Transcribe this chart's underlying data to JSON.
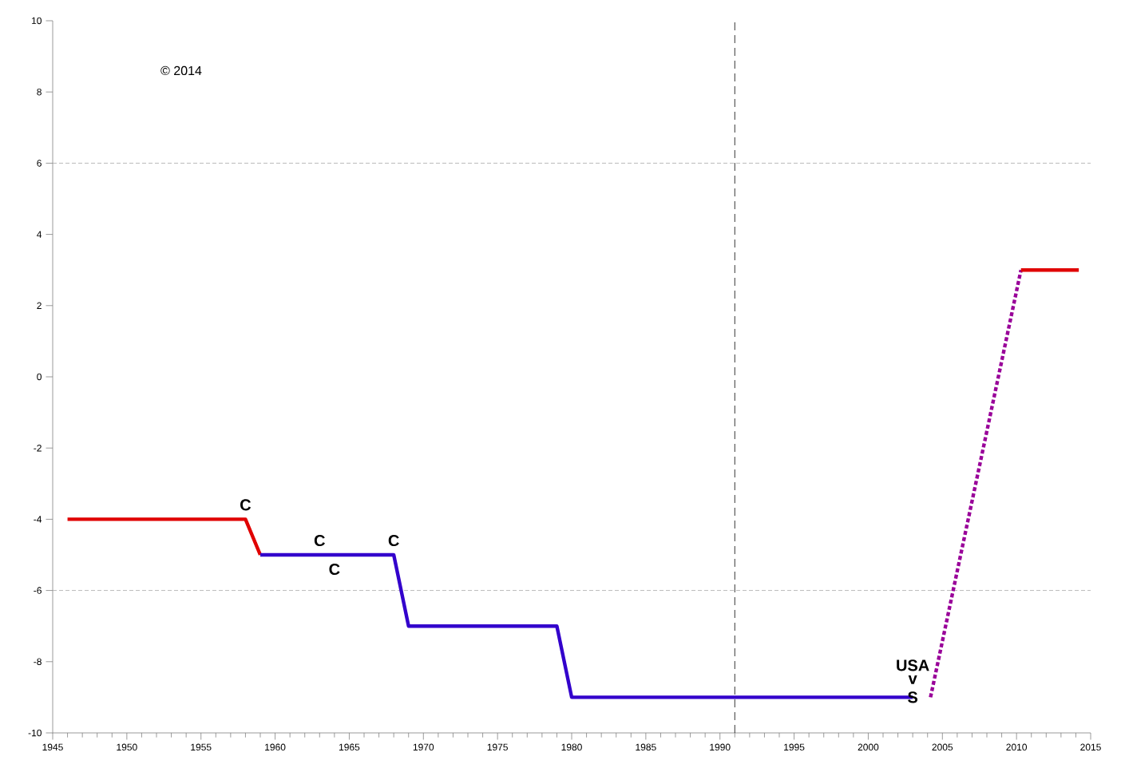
{
  "chart_data": {
    "type": "line",
    "xlim": [
      1945,
      2015
    ],
    "ylim": [
      -10,
      10
    ],
    "xticks": [
      1945,
      1950,
      1955,
      1960,
      1965,
      1970,
      1975,
      1980,
      1985,
      1990,
      1995,
      2000,
      2005,
      2010,
      2015
    ],
    "yticks": [
      -10,
      -8,
      -6,
      -4,
      -2,
      0,
      2,
      4,
      6,
      8,
      10
    ],
    "grid": false,
    "series": [
      {
        "color": "#e00000",
        "x": [
          1946,
          1958,
          1959
        ],
        "values": [
          -4,
          -4,
          -5
        ]
      },
      {
        "color": "#3300cc",
        "x": [
          1959,
          1968,
          1969,
          1979,
          1980,
          2003
        ],
        "values": [
          -5,
          -5,
          -7,
          -7,
          -9,
          -9
        ]
      },
      {
        "color": "#990099",
        "line_style": "dotted",
        "x": [
          2004.2,
          2010.3
        ],
        "values": [
          -9,
          3
        ]
      },
      {
        "color": "#e00000",
        "x": [
          2010.3,
          2014.2
        ],
        "values": [
          3,
          3
        ]
      }
    ],
    "ref_lines": [
      {
        "axis": "x",
        "value": 1991,
        "color": "#000000",
        "line_style": "dashed"
      },
      {
        "axis": "y",
        "value": 6,
        "color": "#aaaaaa",
        "line_style": "dotted"
      },
      {
        "axis": "y",
        "value": -6,
        "color": "#aaaaaa",
        "line_style": "dotted"
      }
    ],
    "annotations": [
      "© 2014",
      {
        "text": "C",
        "x": 1958,
        "y": -4
      },
      {
        "text": "C",
        "x": 1963,
        "y": -5
      },
      {
        "text": "C",
        "x": 1964,
        "y": -5
      },
      {
        "text": "C",
        "x": 1968,
        "y": -5
      },
      {
        "text": "S",
        "x": 2003,
        "y": -9
      },
      {
        "text": "v",
        "x": 2003,
        "y": -9
      },
      {
        "text": "USA",
        "x": 2003,
        "y": -9
      }
    ]
  }
}
